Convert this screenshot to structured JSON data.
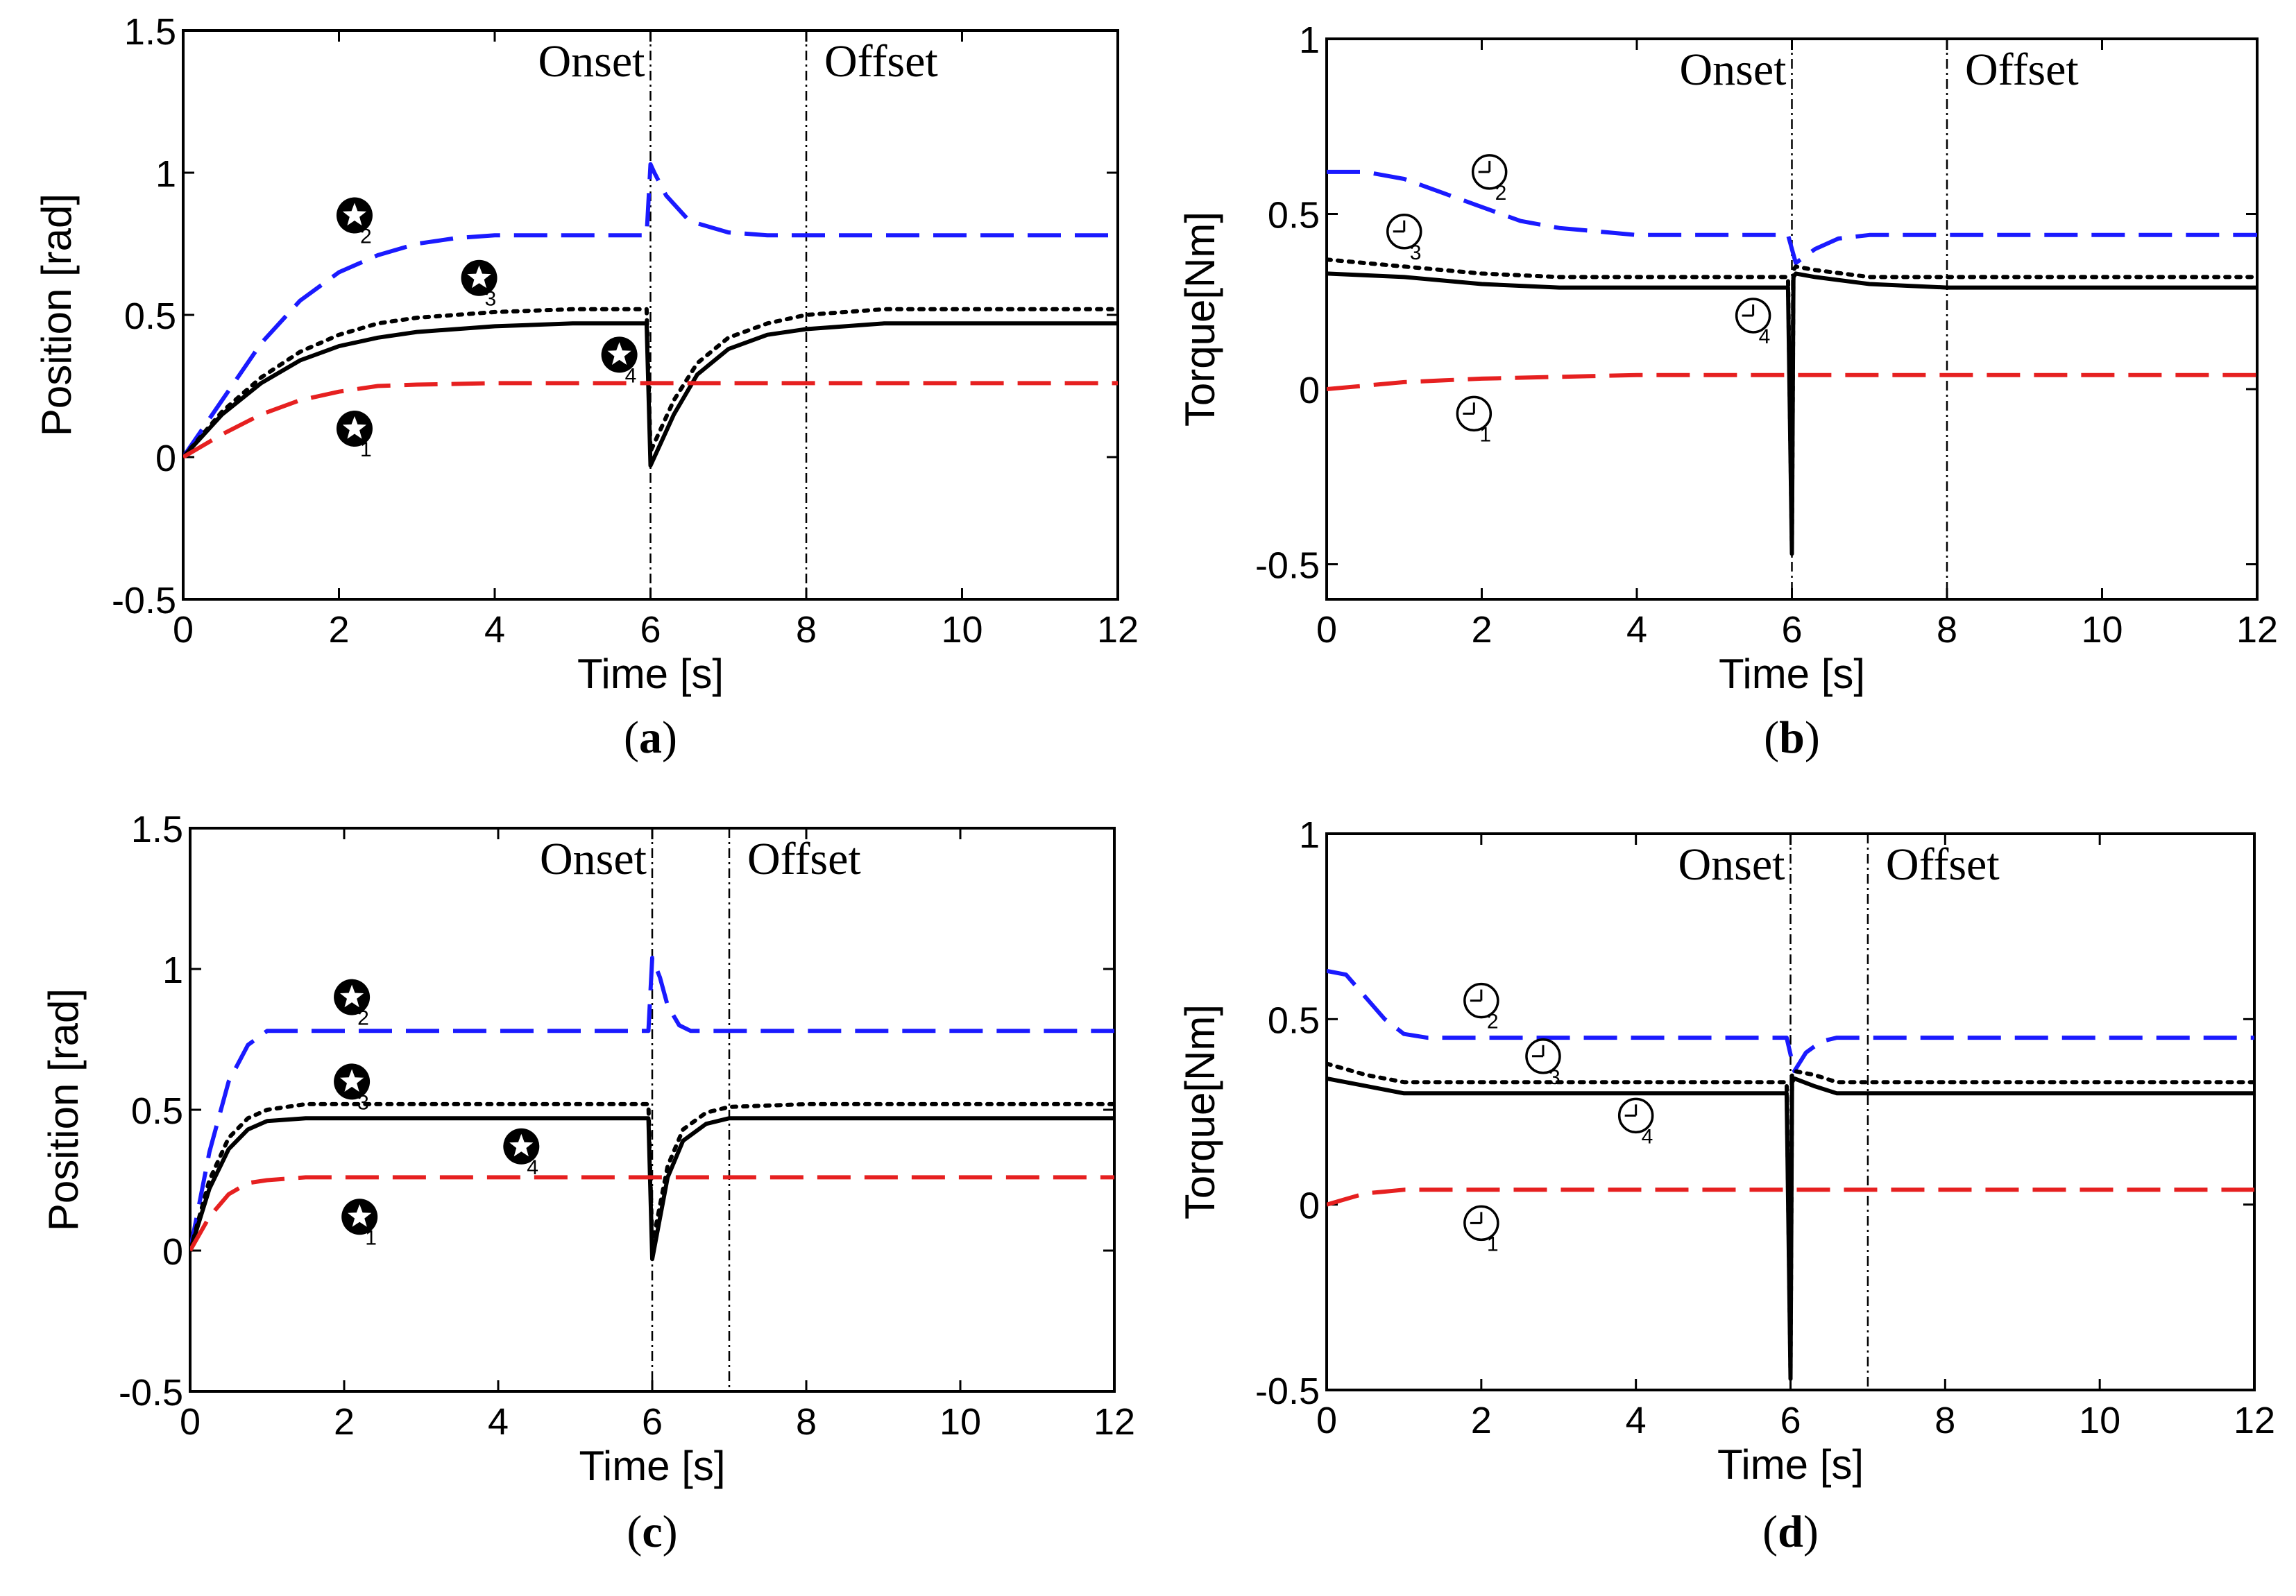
{
  "chart_data": [
    {
      "id": "a",
      "panel_label": "a",
      "type": "line",
      "xlabel": "Time [s]",
      "ylabel": "Position [rad]",
      "xlim": [
        0,
        12
      ],
      "ylim": [
        -0.5,
        1.5
      ],
      "xticks": [
        "0",
        "2",
        "4",
        "6",
        "8",
        "10",
        "12"
      ],
      "yticks": [
        "-0.5",
        "0",
        "0.5",
        "1",
        "1.5"
      ],
      "grid": false,
      "vlines": [
        {
          "x": 6,
          "label": "Onset"
        },
        {
          "x": 8,
          "label": "Offset"
        }
      ],
      "markers": [
        {
          "shape": "star",
          "index": "1",
          "x": 2.2,
          "y": 0.1
        },
        {
          "shape": "star",
          "index": "2",
          "x": 2.2,
          "y": 0.85
        },
        {
          "shape": "star",
          "index": "3",
          "x": 3.8,
          "y": 0.63
        },
        {
          "shape": "star",
          "index": "4",
          "x": 5.6,
          "y": 0.36
        }
      ],
      "series": [
        {
          "color": "#1a1aff",
          "style": "dashed",
          "x": [
            0,
            0.5,
            1,
            1.5,
            2,
            2.5,
            3,
            3.5,
            4,
            5,
            5.95,
            6.0,
            6.05,
            6.2,
            6.5,
            7,
            7.5,
            8,
            12
          ],
          "y": [
            0,
            0.2,
            0.4,
            0.55,
            0.65,
            0.71,
            0.75,
            0.77,
            0.78,
            0.78,
            0.78,
            1.03,
            1.0,
            0.92,
            0.83,
            0.79,
            0.78,
            0.78,
            0.78
          ]
        },
        {
          "color": "#000000",
          "style": "dotted",
          "x": [
            0,
            0.5,
            1,
            1.5,
            2,
            2.5,
            3,
            4,
            5,
            5.95,
            6.0,
            6.3,
            6.6,
            7,
            7.5,
            8,
            9,
            12
          ],
          "y": [
            0,
            0.16,
            0.28,
            0.37,
            0.43,
            0.47,
            0.49,
            0.51,
            0.52,
            0.52,
            0.02,
            0.2,
            0.33,
            0.42,
            0.47,
            0.5,
            0.52,
            0.52
          ]
        },
        {
          "color": "#000000",
          "style": "solid",
          "x": [
            0,
            0.5,
            1,
            1.5,
            2,
            2.5,
            3,
            4,
            5,
            5.95,
            6.0,
            6.3,
            6.6,
            7,
            7.5,
            8,
            9,
            12
          ],
          "y": [
            0,
            0.15,
            0.26,
            0.34,
            0.39,
            0.42,
            0.44,
            0.46,
            0.47,
            0.47,
            -0.03,
            0.15,
            0.29,
            0.38,
            0.43,
            0.45,
            0.47,
            0.47
          ]
        },
        {
          "color": "#e62020",
          "style": "dashed",
          "x": [
            0,
            0.5,
            1,
            1.5,
            2,
            2.5,
            3,
            4,
            6,
            12
          ],
          "y": [
            0,
            0.08,
            0.15,
            0.2,
            0.23,
            0.25,
            0.255,
            0.26,
            0.26,
            0.26
          ]
        }
      ]
    },
    {
      "id": "b",
      "panel_label": "b",
      "type": "line",
      "xlabel": "Time [s]",
      "ylabel": "Torque[Nm]",
      "xlim": [
        0,
        12
      ],
      "ylim": [
        -0.6,
        1
      ],
      "xticks": [
        "0",
        "2",
        "4",
        "6",
        "8",
        "10",
        "12"
      ],
      "yticks": [
        "-0.5",
        "0",
        "0.5",
        "1"
      ],
      "grid": false,
      "vlines": [
        {
          "x": 6,
          "label": "Onset"
        },
        {
          "x": 8,
          "label": "Offset"
        }
      ],
      "markers": [
        {
          "shape": "clock",
          "index": "2",
          "x": 2.1,
          "y": 0.62
        },
        {
          "shape": "clock",
          "index": "3",
          "x": 1.0,
          "y": 0.45
        },
        {
          "shape": "clock",
          "index": "4",
          "x": 5.5,
          "y": 0.21
        },
        {
          "shape": "clock",
          "index": "1",
          "x": 1.9,
          "y": -0.07
        }
      ],
      "series": [
        {
          "color": "#1a1aff",
          "style": "dashed",
          "x": [
            0,
            0.5,
            1,
            1.5,
            2,
            2.5,
            3,
            4,
            5,
            5.95,
            6.05,
            6.3,
            6.6,
            7,
            8,
            12
          ],
          "y": [
            0.62,
            0.62,
            0.6,
            0.56,
            0.52,
            0.48,
            0.46,
            0.44,
            0.44,
            0.44,
            0.36,
            0.4,
            0.43,
            0.44,
            0.44,
            0.44
          ]
        },
        {
          "color": "#000000",
          "style": "dotted",
          "x": [
            0,
            1,
            2,
            3,
            4,
            5,
            5.95,
            6.0,
            6.02,
            6.05,
            6.3,
            7,
            8,
            12
          ],
          "y": [
            0.37,
            0.35,
            0.33,
            0.32,
            0.32,
            0.32,
            0.32,
            -0.45,
            0.34,
            0.35,
            0.34,
            0.32,
            0.32,
            0.32
          ]
        },
        {
          "color": "#000000",
          "style": "solid",
          "x": [
            0,
            1,
            2,
            3,
            4,
            5,
            5.95,
            6.0,
            6.02,
            6.05,
            6.3,
            7,
            8,
            12
          ],
          "y": [
            0.33,
            0.32,
            0.3,
            0.29,
            0.29,
            0.29,
            0.29,
            -0.47,
            0.32,
            0.33,
            0.32,
            0.3,
            0.29,
            0.29
          ]
        },
        {
          "color": "#e62020",
          "style": "dashed",
          "x": [
            0,
            0.5,
            1,
            1.5,
            2,
            3,
            4,
            6,
            12
          ],
          "y": [
            0,
            0.01,
            0.02,
            0.025,
            0.03,
            0.035,
            0.04,
            0.04,
            0.04
          ]
        }
      ]
    },
    {
      "id": "c",
      "panel_label": "c",
      "type": "line",
      "xlabel": "Time [s]",
      "ylabel": "Position [rad]",
      "xlim": [
        0,
        12
      ],
      "ylim": [
        -0.5,
        1.5
      ],
      "xticks": [
        "0",
        "2",
        "4",
        "6",
        "8",
        "10",
        "12"
      ],
      "yticks": [
        "-0.5",
        "0",
        "0.5",
        "1",
        "1.5"
      ],
      "grid": false,
      "vlines": [
        {
          "x": 6,
          "label": "Onset"
        },
        {
          "x": 7,
          "label": "Offset"
        }
      ],
      "markers": [
        {
          "shape": "star",
          "index": "2",
          "x": 2.1,
          "y": 0.9
        },
        {
          "shape": "star",
          "index": "3",
          "x": 2.1,
          "y": 0.6
        },
        {
          "shape": "star",
          "index": "4",
          "x": 4.3,
          "y": 0.37
        },
        {
          "shape": "star",
          "index": "1",
          "x": 2.2,
          "y": 0.12
        }
      ],
      "series": [
        {
          "color": "#1a1aff",
          "style": "dashed",
          "x": [
            0,
            0.25,
            0.5,
            0.75,
            1,
            1.5,
            2,
            5.95,
            6.0,
            6.1,
            6.2,
            6.35,
            6.5,
            7,
            12
          ],
          "y": [
            0,
            0.35,
            0.6,
            0.73,
            0.78,
            0.78,
            0.78,
            0.78,
            1.04,
            0.97,
            0.87,
            0.8,
            0.78,
            0.78,
            0.78
          ]
        },
        {
          "color": "#000000",
          "style": "dotted",
          "x": [
            0,
            0.25,
            0.5,
            0.75,
            1,
            1.5,
            2,
            5.95,
            6.0,
            6.2,
            6.4,
            6.7,
            7,
            8,
            12
          ],
          "y": [
            0,
            0.25,
            0.4,
            0.47,
            0.5,
            0.52,
            0.52,
            0.52,
            0.02,
            0.3,
            0.43,
            0.49,
            0.51,
            0.52,
            0.52
          ]
        },
        {
          "color": "#000000",
          "style": "solid",
          "x": [
            0,
            0.25,
            0.5,
            0.75,
            1,
            1.5,
            2,
            5.95,
            6.0,
            6.2,
            6.4,
            6.7,
            7,
            8,
            12
          ],
          "y": [
            0,
            0.22,
            0.36,
            0.43,
            0.46,
            0.47,
            0.47,
            0.47,
            -0.03,
            0.26,
            0.39,
            0.45,
            0.47,
            0.47,
            0.47
          ]
        },
        {
          "color": "#e62020",
          "style": "dashed",
          "x": [
            0,
            0.25,
            0.5,
            0.75,
            1,
            1.5,
            2,
            6,
            12
          ],
          "y": [
            0,
            0.12,
            0.2,
            0.24,
            0.25,
            0.26,
            0.26,
            0.26,
            0.26
          ]
        }
      ]
    },
    {
      "id": "d",
      "panel_label": "d",
      "type": "line",
      "xlabel": "Time [s]",
      "ylabel": "Torque[Nm]",
      "xlim": [
        0,
        12
      ],
      "ylim": [
        -0.5,
        1
      ],
      "xticks": [
        "0",
        "2",
        "4",
        "6",
        "8",
        "10",
        "12"
      ],
      "yticks": [
        "-0.5",
        "0",
        "0.5",
        "1"
      ],
      "grid": false,
      "vlines": [
        {
          "x": 6,
          "label": "Onset"
        },
        {
          "x": 7,
          "label": "Offset"
        }
      ],
      "markers": [
        {
          "shape": "clock",
          "index": "2",
          "x": 2.0,
          "y": 0.55
        },
        {
          "shape": "clock",
          "index": "3",
          "x": 2.8,
          "y": 0.4
        },
        {
          "shape": "clock",
          "index": "4",
          "x": 4.0,
          "y": 0.24
        },
        {
          "shape": "clock",
          "index": "1",
          "x": 2.0,
          "y": -0.05
        }
      ],
      "series": [
        {
          "color": "#1a1aff",
          "style": "dashed",
          "x": [
            0,
            0.25,
            0.5,
            0.75,
            1,
            1.3,
            2,
            5.95,
            6.05,
            6.2,
            6.4,
            6.6,
            7,
            12
          ],
          "y": [
            0.63,
            0.62,
            0.56,
            0.5,
            0.46,
            0.45,
            0.45,
            0.45,
            0.36,
            0.41,
            0.44,
            0.45,
            0.45,
            0.45
          ]
        },
        {
          "color": "#000000",
          "style": "dotted",
          "x": [
            0,
            0.5,
            1,
            1.5,
            2,
            5.95,
            6.0,
            6.02,
            6.05,
            6.3,
            6.6,
            7,
            12
          ],
          "y": [
            0.38,
            0.35,
            0.33,
            0.33,
            0.33,
            0.33,
            -0.45,
            0.35,
            0.36,
            0.35,
            0.33,
            0.33,
            0.33
          ]
        },
        {
          "color": "#000000",
          "style": "solid",
          "x": [
            0,
            0.5,
            1,
            1.5,
            2,
            5.95,
            6.0,
            6.02,
            6.05,
            6.3,
            6.6,
            7,
            12
          ],
          "y": [
            0.34,
            0.32,
            0.3,
            0.3,
            0.3,
            0.3,
            -0.47,
            0.33,
            0.34,
            0.32,
            0.3,
            0.3,
            0.3
          ]
        },
        {
          "color": "#e62020",
          "style": "dashed",
          "x": [
            0,
            0.25,
            0.5,
            0.75,
            1,
            2,
            6,
            12
          ],
          "y": [
            0,
            0.015,
            0.03,
            0.035,
            0.04,
            0.04,
            0.04,
            0.04
          ]
        }
      ]
    }
  ]
}
